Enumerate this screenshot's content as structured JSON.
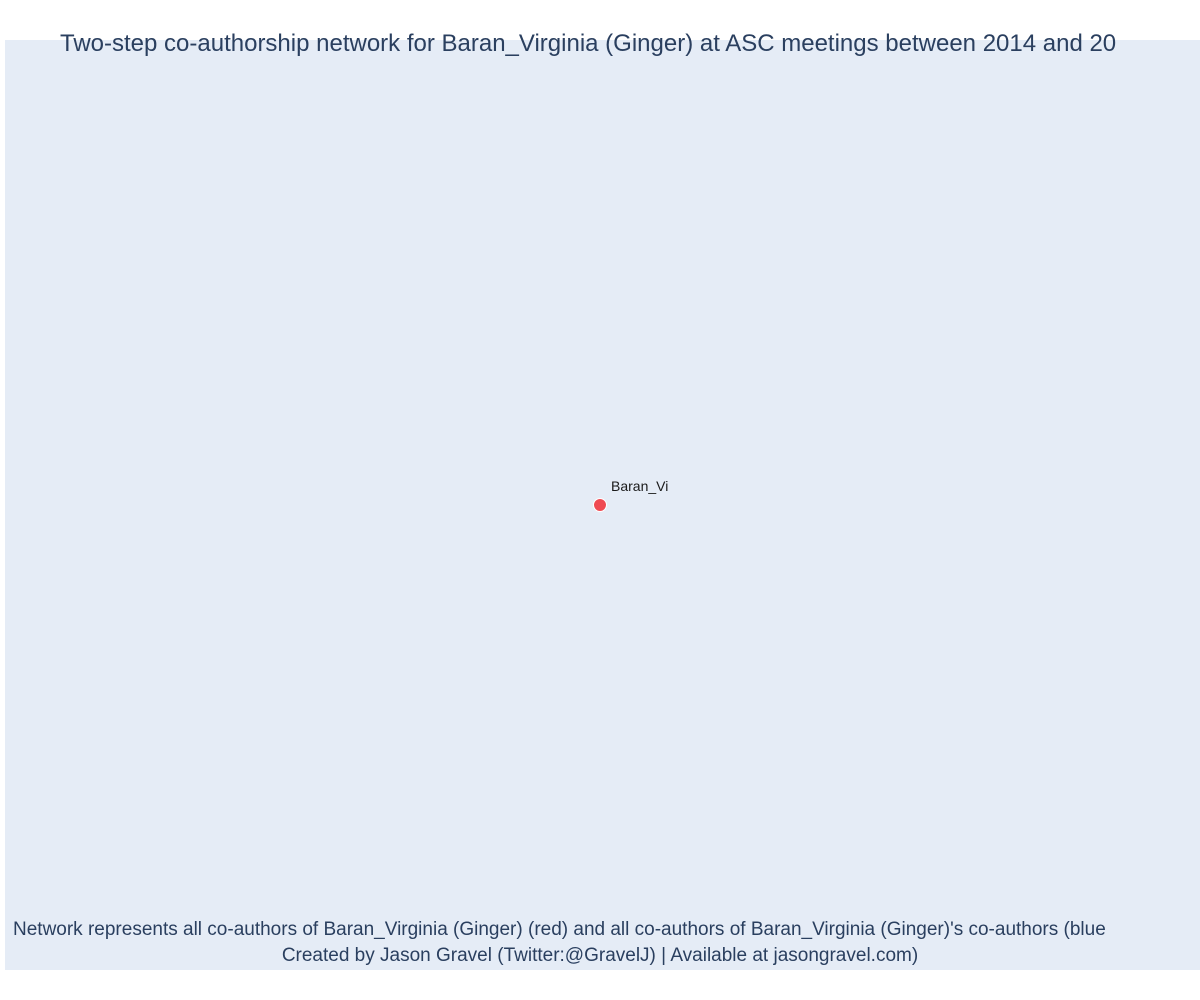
{
  "chart_data": {
    "type": "scatter",
    "title": "Two-step co-authorship network for Baran_Virginia (Ginger) at ASC meetings between 2014 and 20",
    "nodes": [
      {
        "label": "Baran_Vi",
        "role": "ego",
        "color": "#ef4a52",
        "x": 0,
        "y": 0
      }
    ],
    "edges": [],
    "grid": false,
    "plot_background": "#e5ecf6"
  },
  "caption": {
    "line1": "Network represents all co-authors of Baran_Virginia (Ginger) (red) and all co-authors of Baran_Virginia (Ginger)'s co-authors (blue",
    "line2": "Created by Jason Gravel (Twitter:@GravelJ) | Available at jasongravel.com)"
  },
  "colors": {
    "title_text": "#2a3f5f",
    "ego_node": "#ef4a52"
  }
}
